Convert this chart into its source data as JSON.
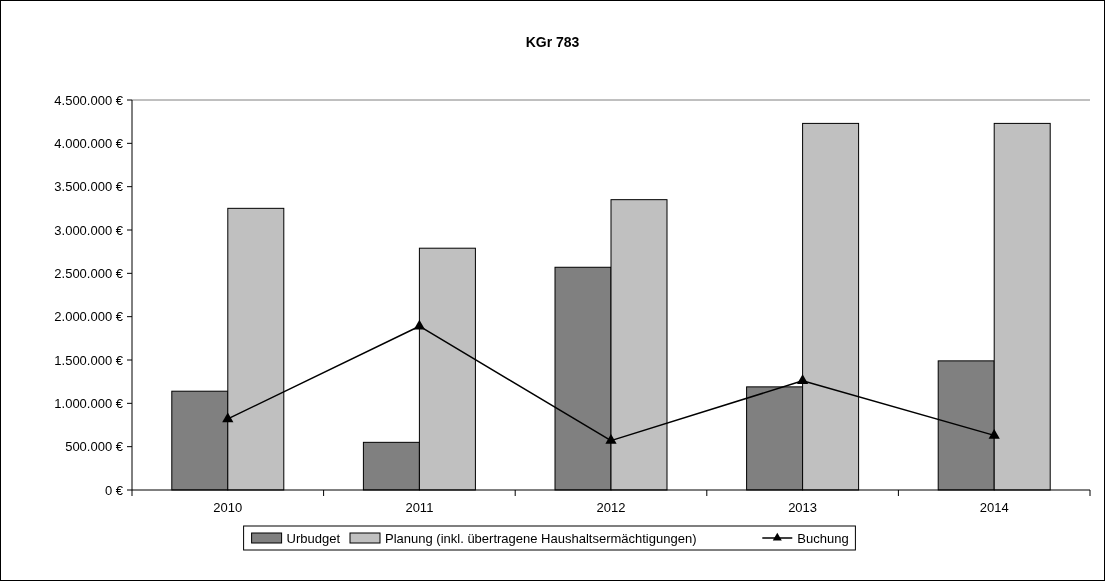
{
  "chart_data": {
    "type": "bar",
    "title": "KGr 783",
    "categories": [
      "2010",
      "2011",
      "2012",
      "2013",
      "2014"
    ],
    "series": [
      {
        "name": "Urbudget",
        "color": "#808080",
        "values": [
          1140000,
          550000,
          2570000,
          1190000,
          1490000
        ]
      },
      {
        "name": "Planung (inkl. übertragene Haushaltsermächtigungen)",
        "color": "#c0c0c0",
        "values": [
          3250000,
          2790000,
          3350000,
          4230000,
          4230000
        ]
      },
      {
        "name": "Buchung",
        "type": "line",
        "color": "#000000",
        "values": [
          820000,
          1890000,
          570000,
          1260000,
          630000
        ],
        "marker": "triangle"
      }
    ],
    "ylim": [
      0,
      4500000
    ],
    "yticks": [
      {
        "value": 0,
        "label": "0 €"
      },
      {
        "value": 500000,
        "label": "500.000 €"
      },
      {
        "value": 1000000,
        "label": "1.000.000 €"
      },
      {
        "value": 1500000,
        "label": "1.500.000 €"
      },
      {
        "value": 2000000,
        "label": "2.000.000 €"
      },
      {
        "value": 2500000,
        "label": "2.500.000 €"
      },
      {
        "value": 3000000,
        "label": "3.000.000 €"
      },
      {
        "value": 3500000,
        "label": "3.500.000 €"
      },
      {
        "value": 4000000,
        "label": "4.000.000 €"
      },
      {
        "value": 4500000,
        "label": "4.500.000 €"
      }
    ],
    "grid": false,
    "legend": "bottom"
  }
}
